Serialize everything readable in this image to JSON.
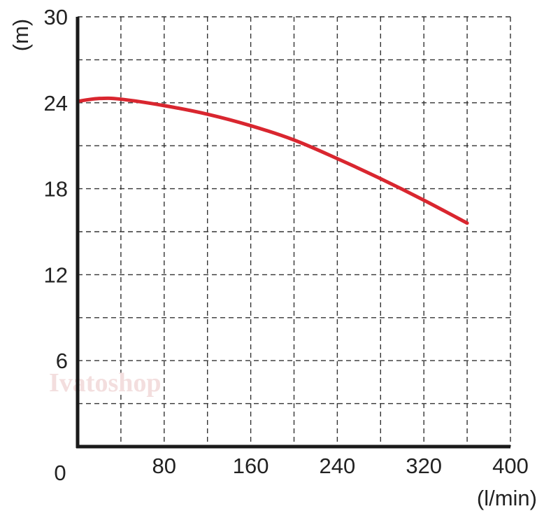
{
  "chart_data": {
    "type": "line",
    "title": "",
    "xlabel": "(l/min)",
    "ylabel": "(m)",
    "xlim": [
      0,
      400
    ],
    "ylim": [
      0,
      30
    ],
    "x_ticks": [
      80,
      160,
      240,
      320,
      400
    ],
    "y_ticks": [
      6,
      12,
      18,
      24,
      30
    ],
    "origin_label": "0",
    "grid": true,
    "grid_style": "dashed",
    "x_grid_step": 40,
    "y_grid_step": 3,
    "series": [
      {
        "color": "#d9262f",
        "points": [
          [
            0,
            24.1
          ],
          [
            20,
            24.3
          ],
          [
            40,
            24.25
          ],
          [
            80,
            23.8
          ],
          [
            120,
            23.2
          ],
          [
            160,
            22.4
          ],
          [
            200,
            21.4
          ],
          [
            240,
            20.1
          ],
          [
            280,
            18.7
          ],
          [
            320,
            17.2
          ],
          [
            360,
            15.6
          ]
        ]
      }
    ]
  },
  "watermark": "Ivatoshop"
}
